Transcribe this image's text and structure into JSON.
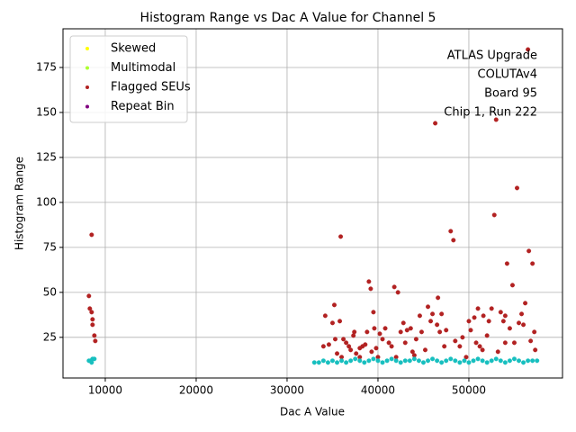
{
  "chart_data": {
    "type": "scatter",
    "title": "Histogram Range vs Dac A Value for Channel 5",
    "x_label": "Dac A Value",
    "y_label": "Histogram Range",
    "annotation": [
      "ATLAS Upgrade",
      "COLUTAv4",
      "Board 95",
      "Chip 1, Run 222"
    ],
    "xlim": [
      5350,
      60300
    ],
    "ylim": [
      2.4,
      196.5
    ],
    "xticks": [
      10000,
      20000,
      30000,
      40000,
      50000
    ],
    "yticks": [
      25,
      50,
      75,
      100,
      125,
      150,
      175
    ],
    "grid": true,
    "legend": "upper left",
    "series": [
      {
        "name": "Skewed",
        "color": "#ffff00",
        "x": [],
        "values": []
      },
      {
        "name": "Multimodal",
        "color": "#adff2f",
        "x": [],
        "values": []
      },
      {
        "name": "Flagged SEUs",
        "color": "#b22222",
        "x": [
          8200,
          8300,
          8500,
          8500,
          8600,
          8600,
          8800,
          8900,
          34000,
          34200,
          34600,
          35000,
          35200,
          35300,
          35500,
          35800,
          35900,
          36200,
          36500,
          36800,
          37000,
          37300,
          37400,
          37600,
          38000,
          38300,
          38600,
          38800,
          39000,
          39200,
          39300,
          39500,
          39600,
          39800,
          40200,
          40500,
          40800,
          41200,
          41500,
          41800,
          42200,
          42500,
          42800,
          43000,
          43200,
          43600,
          43800,
          44200,
          44600,
          44800,
          45200,
          45500,
          45800,
          46000,
          46300,
          46500,
          46600,
          46800,
          47000,
          47300,
          47500,
          48000,
          48300,
          48500,
          49000,
          49300,
          49700,
          50000,
          50200,
          50600,
          51000,
          51200,
          51600,
          52000,
          52200,
          52500,
          52800,
          53000,
          53200,
          53500,
          53800,
          54000,
          54200,
          54500,
          54800,
          55000,
          55300,
          55500,
          55800,
          56000,
          56200,
          56500,
          56600,
          56800,
          57000,
          57200,
          57300,
          54000,
          51500,
          50800,
          44000,
          42000,
          40000,
          38000,
          36000
        ],
        "values": [
          48,
          41,
          82,
          39,
          35,
          32,
          26,
          23,
          20,
          37,
          21,
          33,
          43,
          24,
          16,
          34,
          81,
          24,
          22,
          20,
          18,
          26,
          28,
          16,
          19,
          20,
          21,
          28,
          56,
          52,
          17,
          39,
          30,
          19,
          27,
          24,
          30,
          22,
          20,
          53,
          50,
          28,
          33,
          22,
          29,
          30,
          17,
          24,
          37,
          28,
          18,
          42,
          34,
          38,
          144,
          32,
          47,
          28,
          38,
          20,
          29,
          84,
          79,
          23,
          20,
          25,
          14,
          34,
          29,
          36,
          41,
          20,
          37,
          26,
          34,
          41,
          93,
          146,
          17,
          39,
          34,
          37,
          66,
          30,
          54,
          22,
          108,
          33,
          38,
          32,
          44,
          185,
          73,
          23,
          66,
          28,
          18,
          22,
          18,
          22,
          15,
          14,
          14,
          14,
          14
        ]
      },
      {
        "name": "Repeat Bin",
        "color": "#800080",
        "x": [],
        "values": []
      },
      {
        "color": "#17bfbf",
        "x": [
          8200,
          8400,
          8500,
          8600,
          8800,
          33000,
          33500,
          34000,
          34500,
          35000,
          35500,
          36000,
          36500,
          37000,
          37500,
          38000,
          38500,
          39000,
          39500,
          40000,
          40500,
          41000,
          41500,
          42000,
          42500,
          43000,
          43500,
          44000,
          44500,
          45000,
          45500,
          46000,
          46500,
          47000,
          47500,
          48000,
          48500,
          49000,
          49500,
          50000,
          50500,
          51000,
          51500,
          52000,
          52500,
          53000,
          53500,
          54000,
          54500,
          55000,
          55500,
          56000,
          56500,
          57000,
          57500
        ],
        "values": [
          12,
          12,
          11,
          13,
          13,
          11,
          11,
          12,
          11,
          12,
          11,
          12,
          11,
          12,
          13,
          12,
          11,
          12,
          13,
          12,
          11,
          12,
          13,
          12,
          11,
          12,
          12,
          13,
          12,
          11,
          12,
          13,
          12,
          11,
          12,
          13,
          12,
          11,
          12,
          11,
          12,
          13,
          12,
          11,
          12,
          13,
          12,
          11,
          12,
          13,
          12,
          11,
          12,
          12,
          12
        ]
      }
    ]
  }
}
